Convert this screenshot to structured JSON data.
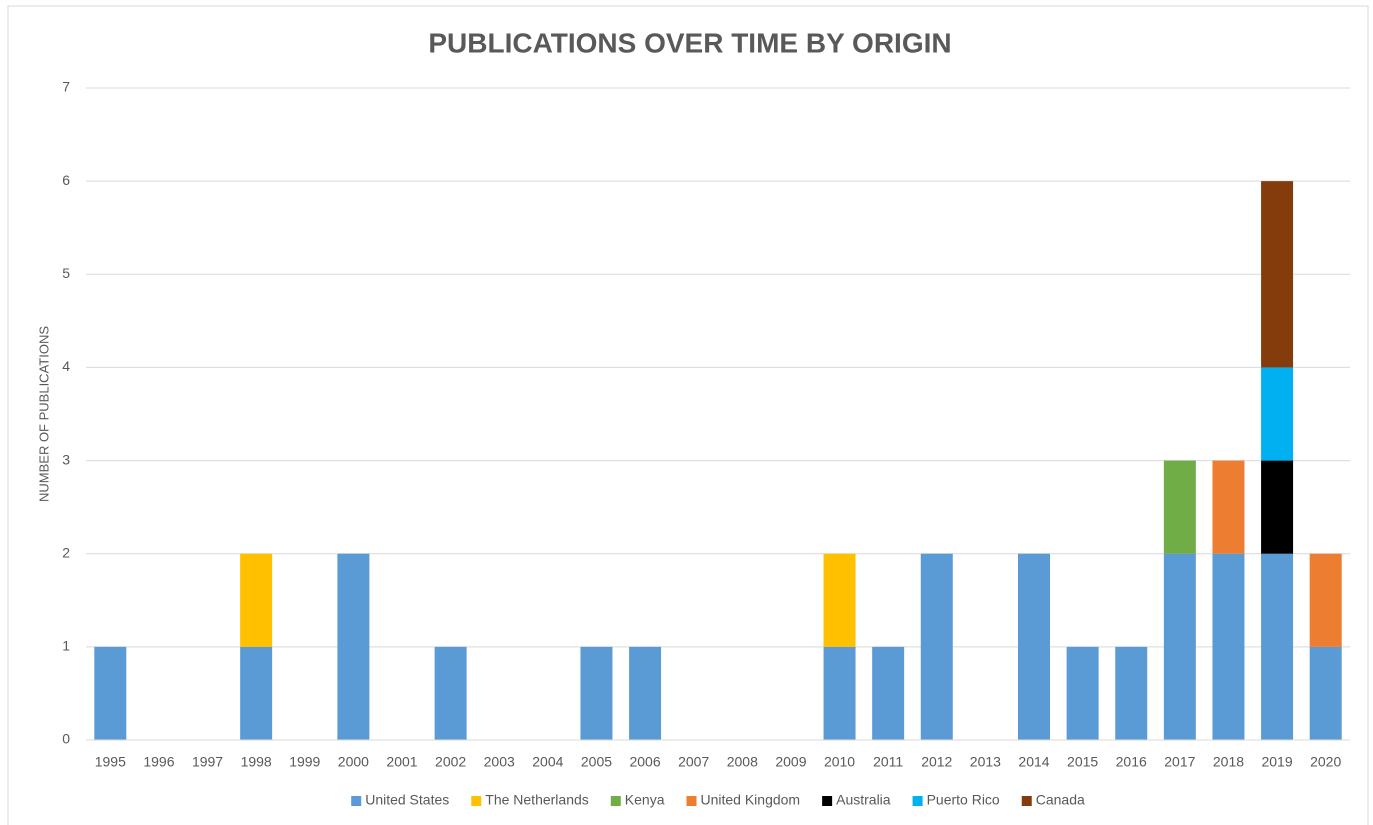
{
  "chart_data": {
    "type": "bar",
    "stacked": true,
    "title": "PUBLICATIONS OVER TIME BY ORIGIN",
    "y_label": "NUMBER OF PUBLICATIONS",
    "categories": [
      "1995",
      "1996",
      "1997",
      "1998",
      "1999",
      "2000",
      "2001",
      "2002",
      "2003",
      "2004",
      "2005",
      "2006",
      "2007",
      "2008",
      "2009",
      "2010",
      "2011",
      "2012",
      "2013",
      "2014",
      "2015",
      "2016",
      "2017",
      "2018",
      "2019",
      "2020"
    ],
    "series": [
      {
        "name": "United States",
        "color": "#5b9bd5",
        "values": [
          1,
          0,
          0,
          1,
          0,
          2,
          0,
          1,
          0,
          0,
          1,
          1,
          0,
          0,
          0,
          1,
          1,
          2,
          0,
          2,
          1,
          1,
          2,
          2,
          2,
          1
        ]
      },
      {
        "name": "The Netherlands",
        "color": "#ffc000",
        "values": [
          0,
          0,
          0,
          1,
          0,
          0,
          0,
          0,
          0,
          0,
          0,
          0,
          0,
          0,
          0,
          1,
          0,
          0,
          0,
          0,
          0,
          0,
          0,
          0,
          0,
          0
        ]
      },
      {
        "name": "Kenya",
        "color": "#70ad47",
        "values": [
          0,
          0,
          0,
          0,
          0,
          0,
          0,
          0,
          0,
          0,
          0,
          0,
          0,
          0,
          0,
          0,
          0,
          0,
          0,
          0,
          0,
          0,
          1,
          0,
          0,
          0
        ]
      },
      {
        "name": "United Kingdom",
        "color": "#ed7d31",
        "values": [
          0,
          0,
          0,
          0,
          0,
          0,
          0,
          0,
          0,
          0,
          0,
          0,
          0,
          0,
          0,
          0,
          0,
          0,
          0,
          0,
          0,
          0,
          0,
          1,
          0,
          1
        ]
      },
      {
        "name": "Australia",
        "color": "#000000",
        "values": [
          0,
          0,
          0,
          0,
          0,
          0,
          0,
          0,
          0,
          0,
          0,
          0,
          0,
          0,
          0,
          0,
          0,
          0,
          0,
          0,
          0,
          0,
          0,
          0,
          1,
          0
        ]
      },
      {
        "name": "Puerto Rico",
        "color": "#00b0f0",
        "values": [
          0,
          0,
          0,
          0,
          0,
          0,
          0,
          0,
          0,
          0,
          0,
          0,
          0,
          0,
          0,
          0,
          0,
          0,
          0,
          0,
          0,
          0,
          0,
          0,
          1,
          0
        ]
      },
      {
        "name": "Canada",
        "color": "#843c0c",
        "values": [
          0,
          0,
          0,
          0,
          0,
          0,
          0,
          0,
          0,
          0,
          0,
          0,
          0,
          0,
          0,
          0,
          0,
          0,
          0,
          0,
          0,
          0,
          0,
          0,
          2,
          0
        ]
      }
    ],
    "ylim": [
      0,
      7
    ],
    "yticks": [
      0,
      1,
      2,
      3,
      4,
      5,
      6,
      7
    ],
    "grid": true,
    "legend": "bottom"
  }
}
